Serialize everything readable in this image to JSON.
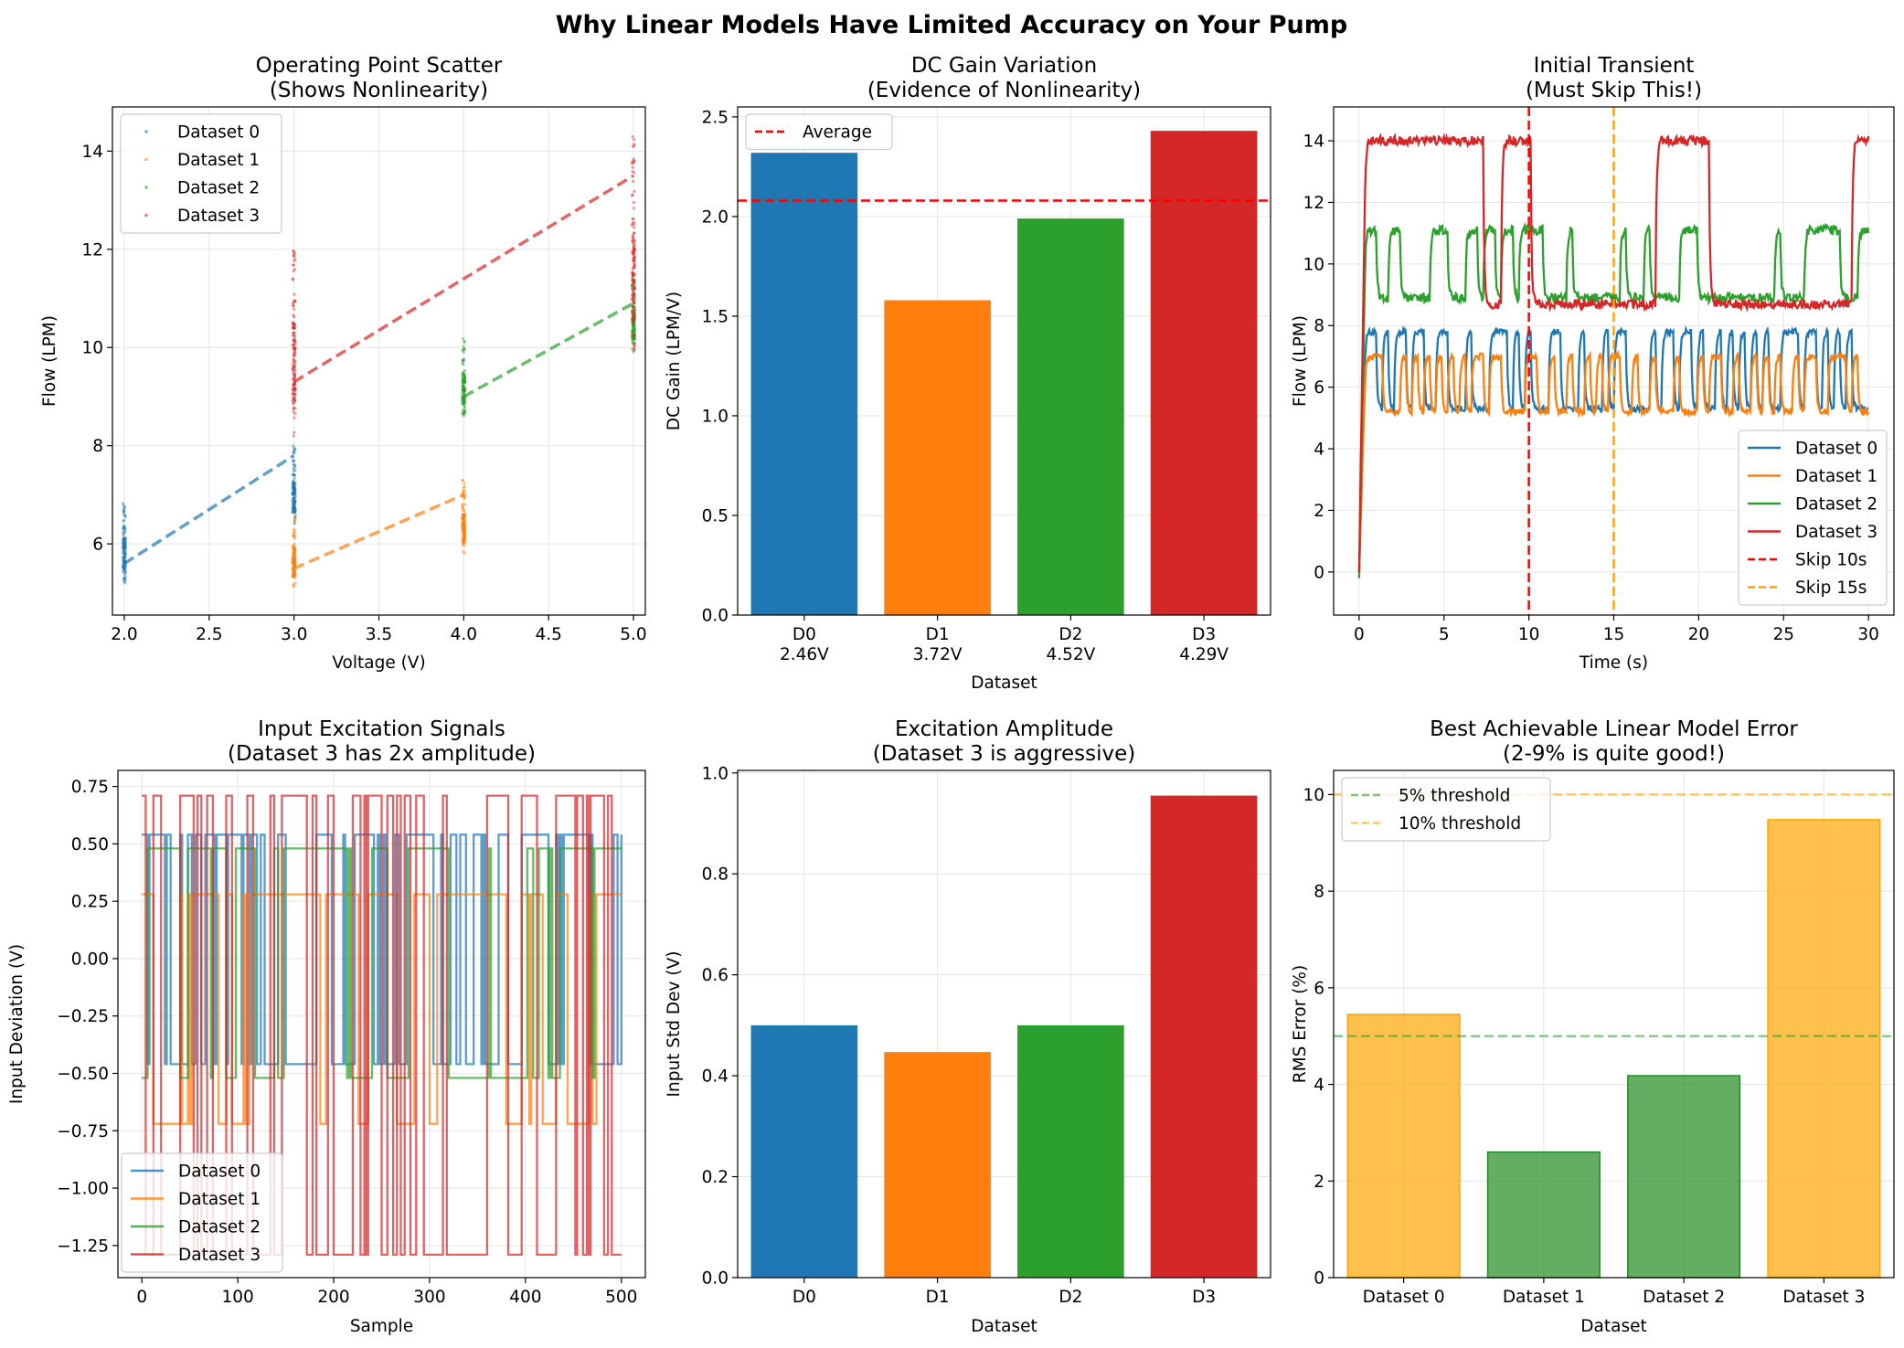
{
  "figure_title": "Why Linear Models Have Limited Accuracy on Your Pump",
  "colors": {
    "c0": "#1f77b4",
    "c1": "#ff7f0e",
    "c2": "#2ca02c",
    "c3": "#d62728",
    "red": "#ff0000",
    "orange": "#ffa500",
    "grid": "#e5e5e5"
  },
  "chart_data": [
    {
      "id": "scatter",
      "type": "scatter",
      "title": [
        "Operating Point Scatter",
        "(Shows Nonlinearity)"
      ],
      "xlabel": "Voltage (V)",
      "ylabel": "Flow (LPM)",
      "xlim": [
        1.93,
        5.07
      ],
      "ylim": [
        4.55,
        14.9
      ],
      "xticks": [
        2.0,
        2.5,
        3.0,
        3.5,
        4.0,
        4.5,
        5.0
      ],
      "xtick_labels": [
        "2.0",
        "2.5",
        "3.0",
        "3.5",
        "4.0",
        "4.5",
        "5.0"
      ],
      "yticks": [
        6,
        8,
        10,
        12,
        14
      ],
      "ytick_labels": [
        "6",
        "8",
        "10",
        "12",
        "14"
      ],
      "grid": true,
      "legend": "top-left",
      "series": [
        {
          "name": "Dataset 0",
          "clusters": [
            {
              "v": 2.0,
              "flow_min": 5.2,
              "flow_max": 6.85
            },
            {
              "v": 3.0,
              "flow_min": 6.4,
              "flow_max": 8.0
            }
          ],
          "fit": [
            [
              2.0,
              5.6
            ],
            [
              3.0,
              7.8
            ]
          ]
        },
        {
          "name": "Dataset 1",
          "clusters": [
            {
              "v": 3.0,
              "flow_min": 5.1,
              "flow_max": 6.6
            },
            {
              "v": 4.0,
              "flow_min": 5.8,
              "flow_max": 7.3
            }
          ],
          "fit": [
            [
              3.0,
              5.5
            ],
            [
              4.0,
              7.0
            ]
          ]
        },
        {
          "name": "Dataset 2",
          "clusters": [
            {
              "v": 4.0,
              "flow_min": 8.6,
              "flow_max": 10.2
            },
            {
              "v": 5.0,
              "flow_min": 9.9,
              "flow_max": 11.5
            }
          ],
          "fit": [
            [
              4.0,
              9.0
            ],
            [
              5.0,
              10.9
            ]
          ]
        },
        {
          "name": "Dataset 3",
          "clusters": [
            {
              "v": 3.0,
              "flow_min": 8.2,
              "flow_max": 12.4
            },
            {
              "v": 5.0,
              "flow_min": 9.8,
              "flow_max": 14.4
            }
          ],
          "fit": [
            [
              3.0,
              9.3
            ],
            [
              5.0,
              13.5
            ]
          ]
        }
      ]
    },
    {
      "id": "dcgain",
      "type": "bar",
      "title": [
        "DC Gain Variation",
        "(Evidence of Nonlinearity)"
      ],
      "xlabel": "Dataset",
      "ylabel": "DC Gain (LPM/V)",
      "ylim": [
        0,
        2.55
      ],
      "yticks": [
        0.0,
        0.5,
        1.0,
        1.5,
        2.0,
        2.5
      ],
      "ytick_labels": [
        "0.0",
        "0.5",
        "1.0",
        "1.5",
        "2.0",
        "2.5"
      ],
      "categories": [
        [
          "D0",
          "2.46V"
        ],
        [
          "D1",
          "3.72V"
        ],
        [
          "D2",
          "4.52V"
        ],
        [
          "D3",
          "4.29V"
        ]
      ],
      "values": [
        2.32,
        1.58,
        1.99,
        2.43
      ],
      "average": 2.08,
      "average_label": "Average",
      "grid": true,
      "legend": "top-left"
    },
    {
      "id": "transient",
      "type": "line",
      "title": [
        "Initial Transient",
        "(Must Skip This!)"
      ],
      "xlabel": "Time (s)",
      "ylabel": "Flow (LPM)",
      "xlim": [
        -1.5,
        31.5
      ],
      "ylim": [
        -1.4,
        15.1
      ],
      "xticks": [
        0,
        5,
        10,
        15,
        20,
        25,
        30
      ],
      "xtick_labels": [
        "0",
        "5",
        "10",
        "15",
        "20",
        "25",
        "30"
      ],
      "yticks": [
        0,
        2,
        4,
        6,
        8,
        10,
        12,
        14
      ],
      "ytick_labels": [
        "0",
        "2",
        "4",
        "6",
        "8",
        "10",
        "12",
        "14"
      ],
      "duration_s": 30,
      "series": [
        {
          "name": "Dataset 0",
          "low": 5.3,
          "high": 7.8,
          "step_prob": 0.55,
          "noise": 0.1
        },
        {
          "name": "Dataset 1",
          "low": 5.2,
          "high": 7.0,
          "step_prob": 0.6,
          "noise": 0.1
        },
        {
          "name": "Dataset 2",
          "low": 8.9,
          "high": 11.1,
          "step_prob": 0.28,
          "noise": 0.15
        },
        {
          "name": "Dataset 3",
          "low": 8.7,
          "high": 14.0,
          "step_prob": 0.12,
          "noise": 0.15
        }
      ],
      "vlines": [
        {
          "x": 10,
          "label": "Skip 10s"
        },
        {
          "x": 15,
          "label": "Skip 15s"
        }
      ],
      "grid": true,
      "legend": "bottom-right"
    },
    {
      "id": "excitation",
      "type": "line",
      "title": [
        "Input Excitation Signals",
        "(Dataset 3 has 2x amplitude)"
      ],
      "xlabel": "Sample",
      "ylabel": "Input Deviation (V)",
      "xlim": [
        -25,
        525
      ],
      "ylim": [
        -1.39,
        0.82
      ],
      "xticks": [
        0,
        100,
        200,
        300,
        400,
        500
      ],
      "xtick_labels": [
        "0",
        "100",
        "200",
        "300",
        "400",
        "500"
      ],
      "yticks": [
        0.75,
        0.5,
        0.25,
        0.0,
        -0.25,
        -0.5,
        -0.75,
        -1.0,
        -1.25
      ],
      "ytick_labels": [
        "0.75",
        "0.50",
        "0.25",
        "0.00",
        "−0.25",
        "−0.50",
        "−0.75",
        "−1.00",
        "−1.25"
      ],
      "samples": 500,
      "series": [
        {
          "name": "Dataset 0",
          "high": 0.54,
          "low": -0.46
        },
        {
          "name": "Dataset 1",
          "high": 0.28,
          "low": -0.72
        },
        {
          "name": "Dataset 2",
          "high": 0.48,
          "low": -0.52
        },
        {
          "name": "Dataset 3",
          "high": 0.71,
          "low": -1.29
        }
      ],
      "grid": true,
      "legend": "bottom-left"
    },
    {
      "id": "amplitude",
      "type": "bar",
      "title": [
        "Excitation Amplitude",
        "(Dataset 3 is aggressive)"
      ],
      "xlabel": "Dataset",
      "ylabel": "Input Std Dev (V)",
      "ylim": [
        0,
        1.005
      ],
      "yticks": [
        0.0,
        0.2,
        0.4,
        0.6,
        0.8,
        1.0
      ],
      "ytick_labels": [
        "0.0",
        "0.2",
        "0.4",
        "0.6",
        "0.8",
        "1.0"
      ],
      "categories": [
        "D0",
        "D1",
        "D2",
        "D3"
      ],
      "values": [
        0.5,
        0.447,
        0.5,
        0.955
      ],
      "grid": true
    },
    {
      "id": "rmserror",
      "type": "bar",
      "title": [
        "Best Achievable Linear Model Error",
        "(2-9% is quite good!)"
      ],
      "xlabel": "Dataset",
      "ylabel": "RMS Error (%)",
      "ylim": [
        0,
        10.5
      ],
      "yticks": [
        0,
        2,
        4,
        6,
        8,
        10
      ],
      "ytick_labels": [
        "0",
        "2",
        "4",
        "6",
        "8",
        "10"
      ],
      "categories": [
        "Dataset 0",
        "Dataset 1",
        "Dataset 2",
        "Dataset 3"
      ],
      "values": [
        5.45,
        2.6,
        4.18,
        9.48
      ],
      "thresholds": [
        {
          "value": 5,
          "label": "5% threshold"
        },
        {
          "value": 10,
          "label": "10% threshold"
        }
      ],
      "grid": true,
      "legend": "top-left"
    }
  ]
}
